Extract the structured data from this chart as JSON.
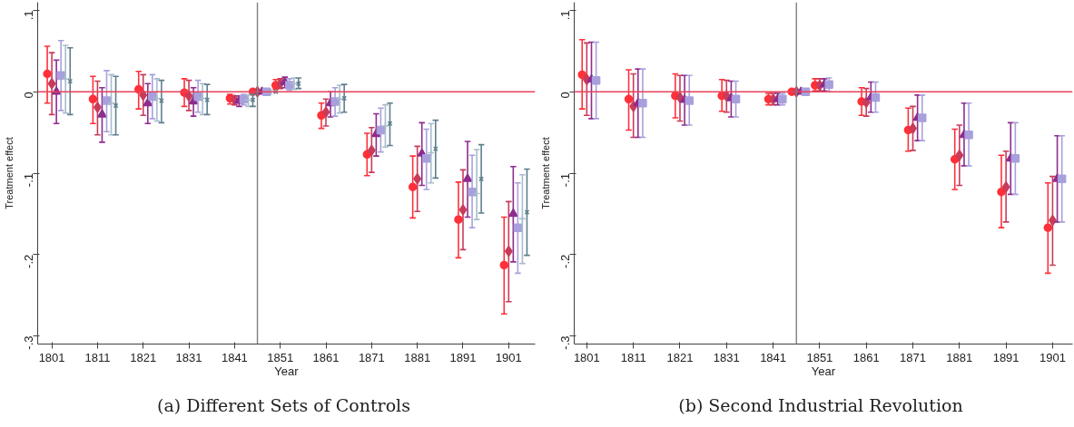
{
  "chart_data": [
    {
      "type": "scatter",
      "xlabel": "Year",
      "ylabel": "Treatment effect",
      "annotations": [
        "(a)  Different Sets of Controls"
      ],
      "xlim": [
        1797.9,
        1906.8
      ],
      "ylim": [
        -0.31,
        0.11
      ],
      "xticks": [
        1801,
        1811,
        1821,
        1831,
        1841,
        1851,
        1861,
        1871,
        1881,
        1891,
        1901
      ],
      "yticks": [
        {
          "value": -0.3,
          "label": "-.3"
        },
        {
          "value": -0.2,
          "label": "-.2"
        },
        {
          "value": -0.1,
          "label": "-.1"
        },
        0,
        {
          "value": 0.1,
          "label": ".1"
        }
      ],
      "grid": false,
      "ref_lines": [
        {
          "axis": "y",
          "value": 0,
          "color": "#e8435a"
        },
        {
          "axis": "x",
          "value": 1846,
          "color": "#7f7f7f"
        }
      ],
      "series": [
        {
          "color": "#ff3038",
          "marker": "circle",
          "x": [
            1800,
            1810,
            1820,
            1830,
            1840,
            1845,
            1850,
            1860,
            1870,
            1880,
            1890,
            1900
          ],
          "values": [
            0.022,
            -0.009,
            0.003,
            -0.001,
            -0.008,
            0,
            0.008,
            -0.029,
            -0.077,
            -0.117,
            -0.157,
            -0.213
          ],
          "errors": [
            [
              -0.014,
              0.056
            ],
            [
              -0.039,
              0.019
            ],
            [
              -0.021,
              0.025
            ],
            [
              -0.018,
              0.016
            ],
            [
              -0.015,
              -0.003
            ],
            null,
            [
              0.003,
              0.015
            ],
            [
              -0.045,
              -0.014
            ],
            [
              -0.103,
              -0.051
            ],
            [
              -0.155,
              -0.079
            ],
            [
              -0.204,
              -0.111
            ],
            [
              -0.273,
              -0.154
            ]
          ]
        },
        {
          "color": "#c83c5a",
          "marker": "diamond",
          "x": [
            1801,
            1811,
            1821,
            1831,
            1841,
            1846,
            1851,
            1861,
            1871,
            1881,
            1891,
            1901
          ],
          "values": [
            0.01,
            -0.019,
            -0.004,
            -0.005,
            -0.01,
            0,
            0.01,
            -0.025,
            -0.072,
            -0.107,
            -0.145,
            -0.196
          ],
          "errors": [
            [
              -0.028,
              0.048
            ],
            [
              -0.053,
              0.013
            ],
            [
              -0.029,
              0.021
            ],
            [
              -0.023,
              0.014
            ],
            [
              -0.016,
              -0.005
            ],
            null,
            [
              0.004,
              0.016
            ],
            [
              -0.042,
              -0.009
            ],
            [
              -0.099,
              -0.044
            ],
            [
              -0.147,
              -0.067
            ],
            [
              -0.194,
              -0.096
            ],
            [
              -0.258,
              -0.135
            ]
          ]
        },
        {
          "color": "#8e2c8e",
          "marker": "triangle",
          "x": [
            1802,
            1812,
            1822,
            1832,
            1842,
            1847,
            1852,
            1862,
            1872,
            1882,
            1892,
            1902
          ],
          "values": [
            0.0,
            -0.028,
            -0.014,
            -0.012,
            -0.011,
            0,
            0.012,
            -0.014,
            -0.052,
            -0.076,
            -0.107,
            -0.15
          ],
          "errors": [
            [
              -0.039,
              0.039
            ],
            [
              -0.062,
              0.005
            ],
            [
              -0.039,
              0.01
            ],
            [
              -0.03,
              0.005
            ],
            [
              -0.018,
              -0.005
            ],
            null,
            [
              0.005,
              0.018
            ],
            [
              -0.031,
              0.0
            ],
            [
              -0.079,
              -0.027
            ],
            [
              -0.115,
              -0.038
            ],
            [
              -0.154,
              -0.061
            ],
            [
              -0.209,
              -0.092
            ]
          ]
        },
        {
          "color": "#a8a0dc",
          "marker": "square",
          "x": [
            1803,
            1813,
            1823,
            1833,
            1843,
            1848,
            1853,
            1863,
            1873,
            1883,
            1893,
            1903
          ],
          "values": [
            0.02,
            -0.011,
            -0.006,
            -0.006,
            -0.009,
            0,
            0.008,
            -0.012,
            -0.047,
            -0.082,
            -0.123,
            -0.167
          ],
          "errors": [
            [
              -0.023,
              0.063
            ],
            [
              -0.049,
              0.026
            ],
            [
              -0.033,
              0.021
            ],
            [
              -0.025,
              0.014
            ],
            [
              -0.016,
              -0.003
            ],
            null,
            [
              0.002,
              0.016
            ],
            [
              -0.03,
              0.005
            ],
            [
              -0.074,
              -0.02
            ],
            [
              -0.12,
              -0.046
            ],
            [
              -0.167,
              -0.078
            ],
            [
              -0.223,
              -0.112
            ]
          ]
        },
        {
          "color": "#a9bccc",
          "marker": "cross",
          "x": [
            1804,
            1814,
            1824,
            1834,
            1844,
            1849,
            1854,
            1864,
            1874,
            1884,
            1894,
            1904
          ],
          "values": [
            0.016,
            -0.014,
            -0.008,
            -0.008,
            -0.01,
            0,
            0.01,
            -0.009,
            -0.042,
            -0.075,
            -0.125,
            -0.156
          ],
          "errors": [
            [
              -0.026,
              0.057
            ],
            [
              -0.053,
              0.021
            ],
            [
              -0.036,
              0.016
            ],
            [
              -0.028,
              0.01
            ],
            [
              -0.018,
              -0.004
            ],
            null,
            [
              0.003,
              0.017
            ],
            [
              -0.026,
              0.008
            ],
            [
              -0.068,
              -0.016
            ],
            [
              -0.112,
              -0.039
            ],
            [
              -0.157,
              -0.071
            ],
            [
              -0.211,
              -0.102
            ]
          ]
        },
        {
          "color": "#5f7f8f",
          "marker": "x",
          "x": [
            1805,
            1815,
            1825,
            1835,
            1845,
            1850,
            1855,
            1865,
            1875,
            1885,
            1895,
            1905
          ],
          "values": [
            0.013,
            -0.017,
            -0.011,
            -0.01,
            -0.01,
            0,
            0.01,
            -0.008,
            -0.039,
            -0.07,
            -0.107,
            -0.148
          ],
          "errors": [
            [
              -0.028,
              0.054
            ],
            [
              -0.053,
              0.019
            ],
            [
              -0.038,
              0.014
            ],
            [
              -0.028,
              0.009
            ],
            [
              -0.018,
              -0.003
            ],
            null,
            [
              0.004,
              0.017
            ],
            [
              -0.025,
              0.009
            ],
            [
              -0.066,
              -0.014
            ],
            [
              -0.106,
              -0.035
            ],
            [
              -0.149,
              -0.065
            ],
            [
              -0.201,
              -0.095
            ]
          ]
        }
      ]
    },
    {
      "type": "scatter",
      "xlabel": "Year",
      "ylabel": "Treatment effect",
      "annotations": [
        "(b)  Second Industrial Revolution"
      ],
      "xlim": [
        1798.3,
        1905.3
      ],
      "ylim": [
        -0.31,
        0.11
      ],
      "xticks": [
        1801,
        1811,
        1821,
        1831,
        1841,
        1851,
        1861,
        1871,
        1881,
        1891,
        1901
      ],
      "yticks": [
        {
          "value": -0.3,
          "label": "-.3"
        },
        {
          "value": -0.2,
          "label": "-.2"
        },
        {
          "value": -0.1,
          "label": "-.1"
        },
        0,
        {
          "value": 0.1,
          "label": ".1"
        }
      ],
      "grid": false,
      "ref_lines": [
        {
          "axis": "y",
          "value": 0,
          "color": "#e8435a"
        },
        {
          "axis": "x",
          "value": 1846,
          "color": "#7f7f7f"
        }
      ],
      "series": [
        {
          "color": "#ff3038",
          "marker": "circle",
          "x": [
            1800,
            1810,
            1820,
            1830,
            1840,
            1845,
            1850,
            1860,
            1870,
            1880,
            1890,
            1900
          ],
          "values": [
            0.021,
            -0.009,
            -0.005,
            -0.005,
            -0.009,
            0,
            0.008,
            -0.012,
            -0.047,
            -0.083,
            -0.123,
            -0.167
          ],
          "errors": [
            [
              -0.021,
              0.064
            ],
            [
              -0.047,
              0.027
            ],
            [
              -0.032,
              0.022
            ],
            [
              -0.024,
              0.015
            ],
            [
              -0.016,
              -0.002
            ],
            null,
            [
              0.001,
              0.016
            ],
            [
              -0.029,
              0.005
            ],
            [
              -0.073,
              -0.02
            ],
            [
              -0.12,
              -0.046
            ],
            [
              -0.167,
              -0.078
            ],
            [
              -0.223,
              -0.112
            ]
          ]
        },
        {
          "color": "#c83c5a",
          "marker": "diamond",
          "x": [
            1801,
            1811,
            1821,
            1831,
            1841,
            1846,
            1851,
            1861,
            1871,
            1881,
            1891,
            1901
          ],
          "values": [
            0.015,
            -0.018,
            -0.007,
            -0.005,
            -0.009,
            0,
            0.008,
            -0.013,
            -0.045,
            -0.078,
            -0.117,
            -0.158
          ],
          "errors": [
            [
              -0.029,
              0.06
            ],
            [
              -0.056,
              0.022
            ],
            [
              -0.036,
              0.02
            ],
            [
              -0.025,
              0.014
            ],
            [
              -0.016,
              -0.002
            ],
            null,
            [
              0.001,
              0.016
            ],
            [
              -0.03,
              0.004
            ],
            [
              -0.072,
              -0.018
            ],
            [
              -0.115,
              -0.041
            ],
            [
              -0.16,
              -0.073
            ],
            [
              -0.213,
              -0.104
            ]
          ]
        },
        {
          "color": "#8e2c8e",
          "marker": "triangle",
          "x": [
            1802,
            1812,
            1822,
            1832,
            1842,
            1847,
            1852,
            1862,
            1872,
            1882,
            1892,
            1902
          ],
          "values": [
            0.015,
            -0.014,
            -0.01,
            -0.008,
            -0.009,
            0,
            0.009,
            -0.007,
            -0.032,
            -0.053,
            -0.082,
            -0.107
          ],
          "errors": [
            [
              -0.033,
              0.061
            ],
            [
              -0.056,
              0.028
            ],
            [
              -0.041,
              0.02
            ],
            [
              -0.031,
              0.013
            ],
            [
              -0.016,
              -0.002
            ],
            null,
            [
              0.001,
              0.016
            ],
            [
              -0.025,
              0.012
            ],
            [
              -0.06,
              -0.004
            ],
            [
              -0.091,
              -0.014
            ],
            [
              -0.126,
              -0.038
            ],
            [
              -0.16,
              -0.054
            ]
          ]
        },
        {
          "color": "#a8a0dc",
          "marker": "square",
          "x": [
            1803,
            1813,
            1823,
            1833,
            1843,
            1848,
            1853,
            1863,
            1873,
            1883,
            1893,
            1903
          ],
          "values": [
            0.014,
            -0.014,
            -0.011,
            -0.009,
            -0.009,
            0,
            0.009,
            -0.007,
            -0.032,
            -0.053,
            -0.082,
            -0.107
          ],
          "errors": [
            [
              -0.033,
              0.061
            ],
            [
              -0.056,
              0.028
            ],
            [
              -0.041,
              0.02
            ],
            [
              -0.031,
              0.013
            ],
            [
              -0.016,
              -0.002
            ],
            null,
            [
              0.0,
              0.017
            ],
            [
              -0.025,
              0.012
            ],
            [
              -0.06,
              -0.004
            ],
            [
              -0.091,
              -0.014
            ],
            [
              -0.126,
              -0.038
            ],
            [
              -0.16,
              -0.054
            ]
          ]
        }
      ]
    }
  ]
}
